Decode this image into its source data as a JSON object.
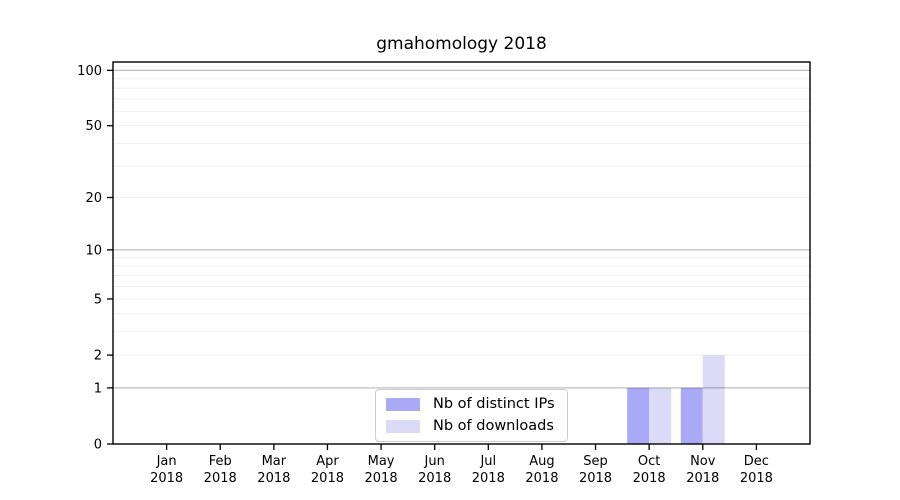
{
  "page": {
    "background": "#ffffff"
  },
  "chart_data": {
    "type": "bar",
    "title": "gmahomology 2018",
    "categories": [
      "Jan",
      "Feb",
      "Mar",
      "Apr",
      "May",
      "Jun",
      "Jul",
      "Aug",
      "Sep",
      "Oct",
      "Nov",
      "Dec"
    ],
    "category_year": "2018",
    "series": [
      {
        "name": "Nb of distinct IPs",
        "color": "#a9a9f6",
        "values": [
          0,
          0,
          0,
          0,
          0,
          0,
          0,
          0,
          0,
          1,
          1,
          0
        ]
      },
      {
        "name": "Nb of downloads",
        "color": "#dbdbf8",
        "values": [
          0,
          0,
          0,
          0,
          0,
          0,
          0,
          0,
          0,
          1,
          2,
          0
        ]
      }
    ],
    "yscale": "log1p",
    "ylim": [
      0,
      110
    ],
    "yticks": [
      {
        "value": 0,
        "label": "0"
      },
      {
        "value": 1,
        "label": "1"
      },
      {
        "value": 2,
        "label": "2"
      },
      {
        "value": 5,
        "label": "5"
      },
      {
        "value": 10,
        "label": "10"
      },
      {
        "value": 20,
        "label": "20"
      },
      {
        "value": 50,
        "label": "50"
      },
      {
        "value": 100,
        "label": "100"
      }
    ],
    "grid": true,
    "grid_minor_values": [
      2,
      3,
      4,
      5,
      6,
      7,
      8,
      9,
      20,
      30,
      40,
      50,
      60,
      70,
      80,
      90
    ],
    "grid_major_values": [
      1,
      10,
      100
    ],
    "legend_position": "lower-center",
    "xlabel": "",
    "ylabel": ""
  },
  "colors": {
    "axis": "#000000",
    "tick_text": "#000000",
    "grid_minor": "#00000010",
    "grid_major": "#00000042",
    "bar_distinct_ips": "#a9a9f6",
    "bar_downloads": "#dbdbf8",
    "legend_border": "#cccccc"
  }
}
